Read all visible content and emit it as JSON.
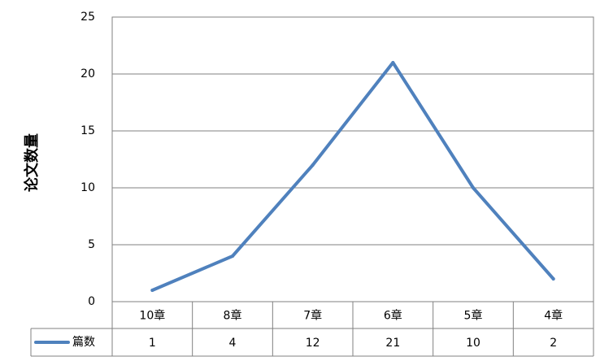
{
  "chart_data": {
    "type": "line",
    "title": "",
    "ylabel": "论文数量",
    "xlabel": "",
    "categories": [
      "10章",
      "8章",
      "7章",
      "6章",
      "5章",
      "4章"
    ],
    "series": [
      {
        "name": "篇数",
        "values": [
          1,
          4,
          12,
          21,
          10,
          2
        ]
      }
    ],
    "ylim": [
      0,
      25
    ],
    "y_ticks": [
      0,
      5,
      10,
      15,
      20,
      25
    ],
    "grid": true,
    "legend": "bottom-left data table",
    "colors": {
      "line": "#4f81bd",
      "grid": "#808080",
      "axis": "#808080",
      "text": "#000000"
    }
  }
}
